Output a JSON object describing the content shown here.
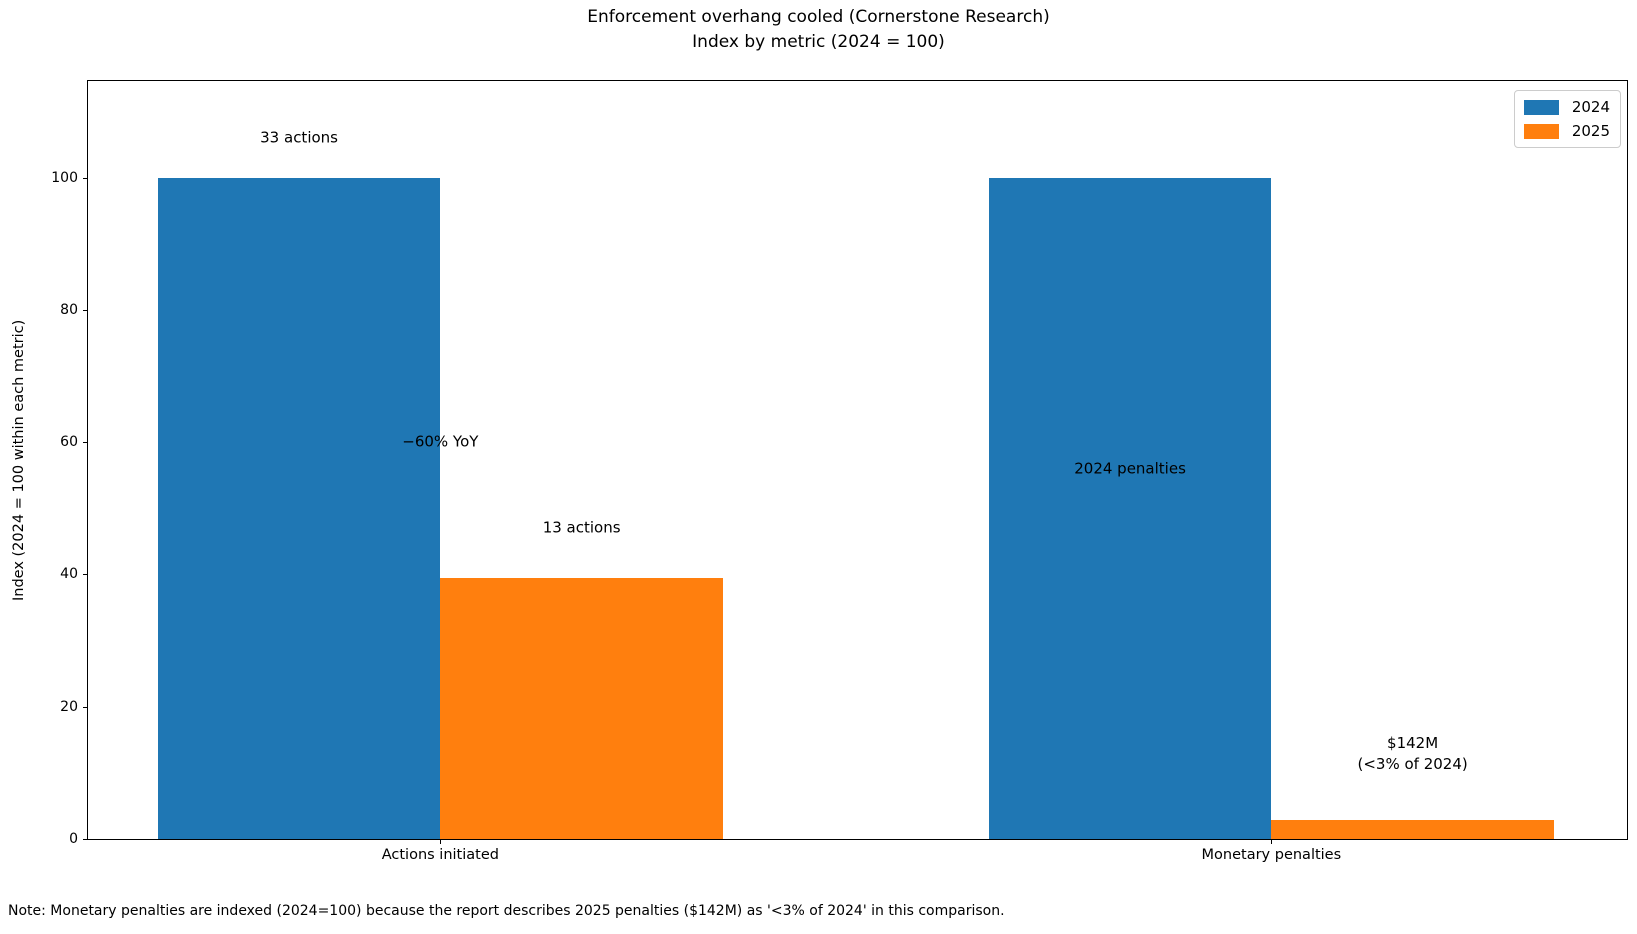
{
  "figure": {
    "title_line1": "Enforcement overhang cooled (Cornerstone Research)",
    "title_line2": "Index by metric (2024 = 100)",
    "note": "Note: Monetary penalties are indexed (2024=100) because the report describes 2025 penalties ($142M) as '<3% of 2024' in this comparison."
  },
  "chart_data": {
    "type": "bar",
    "title": "Enforcement overhang cooled (Cornerstone Research)",
    "subtitle": "Index by metric (2024 = 100)",
    "xlabel": "",
    "ylabel": "Index (2024 = 100 within each metric)",
    "categories": [
      "Actions initiated",
      "Monetary penalties"
    ],
    "series": [
      {
        "name": "2024",
        "color": "#1f77b4",
        "values": [
          100,
          100
        ]
      },
      {
        "name": "2025",
        "color": "#ff7f0e",
        "values": [
          39.4,
          2.8
        ]
      }
    ],
    "ylim": [
      0,
      114.6
    ],
    "yticks": [
      0,
      20,
      40,
      60,
      80,
      100
    ],
    "grid": false,
    "legend_position": "upper right",
    "bar_width_units": 0.34,
    "annotations": [
      {
        "lines": [
          "33 actions"
        ],
        "x": -0.17,
        "y": 106.0
      },
      {
        "lines": [
          "−60% YoY"
        ],
        "x": 0.0,
        "y": 60.0
      },
      {
        "lines": [
          "13 actions"
        ],
        "x": 0.17,
        "y": 47.0
      },
      {
        "lines": [
          "2024 penalties"
        ],
        "x": 0.83,
        "y": 56.0
      },
      {
        "lines": [
          "$142M",
          "(<3% of 2024)"
        ],
        "x": 1.17,
        "y": 12.8
      }
    ]
  }
}
